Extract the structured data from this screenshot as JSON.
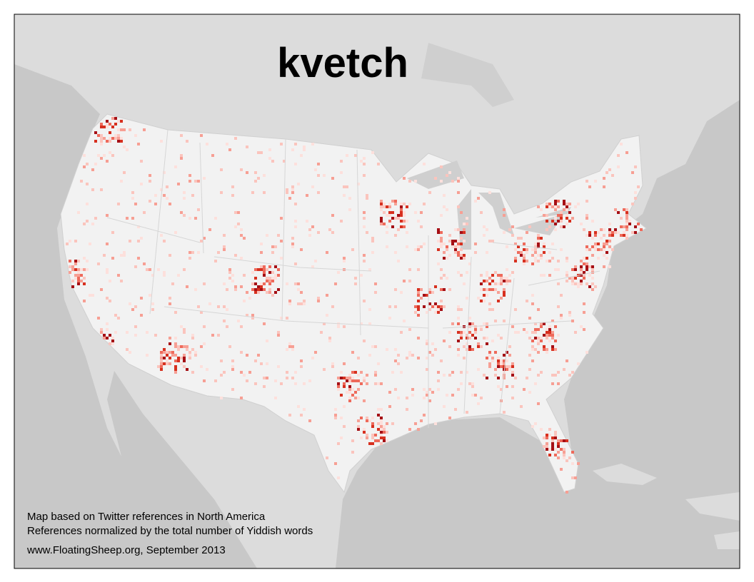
{
  "title": "kvetch",
  "notes": [
    "Map based on Twitter references in North America",
    "References normalized by the total number of Yiddish words"
  ],
  "credit": "www.FloatingSheep.org, September 2013"
}
